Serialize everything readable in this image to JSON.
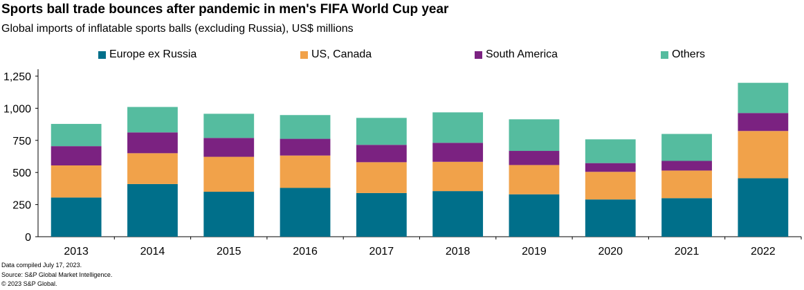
{
  "header": {
    "title": "Sports ball trade bounces after pandemic in men's FIFA World Cup year",
    "subtitle": "Global imports of inflatable sports balls (excluding Russia), US$ millions"
  },
  "footer": {
    "line1": "Data compiled July 17, 2023.",
    "line2": "Source: S&P Global Market Intelligence.",
    "line3": "© 2023 S&P Global."
  },
  "chart_data": {
    "type": "bar",
    "stacked": true,
    "categories": [
      "2013",
      "2014",
      "2015",
      "2016",
      "2017",
      "2018",
      "2019",
      "2020",
      "2021",
      "2022"
    ],
    "series": [
      {
        "name": "Europe ex Russia",
        "color": "#006f8a",
        "values": [
          305,
          410,
          350,
          380,
          340,
          355,
          330,
          290,
          300,
          455
        ]
      },
      {
        "name": "US, Canada",
        "color": "#f1a24a",
        "values": [
          250,
          240,
          272,
          252,
          240,
          228,
          228,
          215,
          215,
          368
        ]
      },
      {
        "name": "South America",
        "color": "#7b2281",
        "values": [
          150,
          162,
          147,
          130,
          135,
          148,
          110,
          68,
          75,
          140
        ]
      },
      {
        "name": "Others",
        "color": "#55bc9f",
        "values": [
          173,
          198,
          188,
          185,
          210,
          237,
          246,
          185,
          210,
          235
        ]
      }
    ],
    "ylim": [
      0,
      1250
    ],
    "yticks": [
      0,
      250,
      500,
      750,
      1000,
      1250
    ],
    "ytick_labels": [
      "0",
      "250",
      "500",
      "750",
      "1,000",
      "1,250"
    ],
    "grid": false,
    "legend_position": "top"
  }
}
